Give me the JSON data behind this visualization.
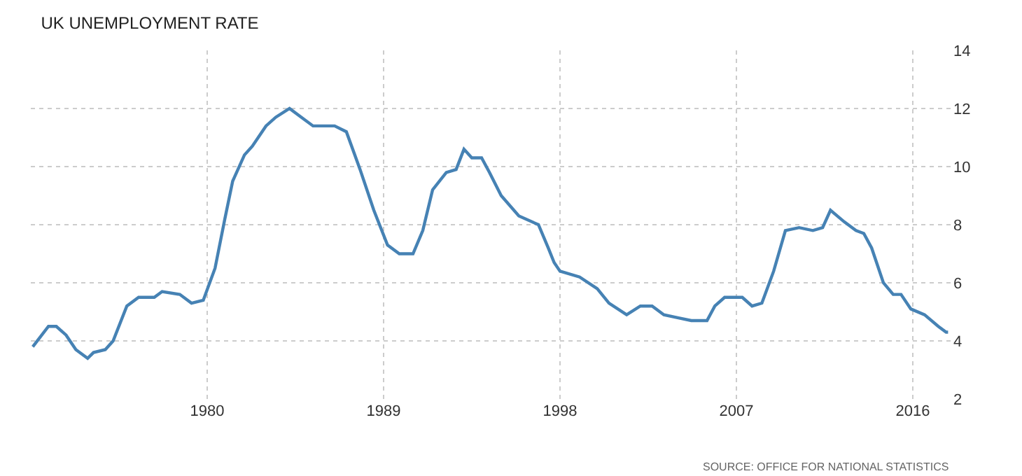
{
  "chart_data": {
    "type": "line",
    "title": "UK UNEMPLOYMENT RATE",
    "annotations": [
      "SOURCE: OFFICE FOR NATIONAL STATISTICS"
    ],
    "x": [
      1971.1,
      1971.9,
      1972.3,
      1972.8,
      1973.3,
      1973.9,
      1974.2,
      1974.8,
      1975.2,
      1975.9,
      1976.5,
      1977.3,
      1977.7,
      1978.6,
      1979.2,
      1979.8,
      1980.4,
      1980.9,
      1981.3,
      1981.9,
      1982.3,
      1983.0,
      1983.5,
      1984.2,
      1984.8,
      1985.4,
      1986.5,
      1987.1,
      1987.8,
      1988.5,
      1989.2,
      1989.8,
      1990.5,
      1991.0,
      1991.5,
      1992.2,
      1992.7,
      1993.1,
      1993.5,
      1994.0,
      1994.4,
      1995.0,
      1995.9,
      1996.9,
      1997.4,
      1997.7,
      1998.0,
      1999.0,
      1999.9,
      2000.5,
      2001.4,
      2002.1,
      2002.7,
      2003.3,
      2004.0,
      2004.7,
      2005.5,
      2005.9,
      2006.4,
      2007.3,
      2007.8,
      2008.3,
      2008.9,
      2009.5,
      2010.2,
      2010.9,
      2011.4,
      2011.8,
      2012.5,
      2013.1,
      2013.5,
      2013.9,
      2014.5,
      2015.0,
      2015.4,
      2015.9,
      2016.6,
      2017.3,
      2017.7,
      2017.8
    ],
    "series": [
      {
        "color": "#4682b4",
        "values": [
          3.8,
          4.5,
          4.5,
          4.2,
          3.7,
          3.4,
          3.6,
          3.7,
          4.0,
          5.2,
          5.5,
          5.5,
          5.7,
          5.6,
          5.3,
          5.4,
          6.5,
          8.2,
          9.5,
          10.4,
          10.7,
          11.4,
          11.7,
          12.0,
          11.7,
          11.4,
          11.4,
          11.2,
          9.9,
          8.5,
          7.3,
          7.0,
          7.0,
          7.8,
          9.2,
          9.8,
          9.9,
          10.6,
          10.3,
          10.3,
          9.8,
          9.0,
          8.3,
          8.0,
          7.2,
          6.7,
          6.4,
          6.2,
          5.8,
          5.3,
          4.9,
          5.2,
          5.2,
          4.9,
          4.8,
          4.7,
          4.7,
          5.2,
          5.5,
          5.5,
          5.2,
          5.3,
          6.4,
          7.8,
          7.9,
          7.8,
          7.9,
          8.5,
          8.1,
          7.8,
          7.7,
          7.2,
          6.0,
          5.6,
          5.6,
          5.1,
          4.9,
          4.5,
          4.3,
          4.3
        ]
      }
    ],
    "xlim": [
      1971,
      2018
    ],
    "xticks": [
      1980,
      1989,
      1998,
      2007,
      2016
    ],
    "ylim": [
      2,
      14
    ],
    "yticks": [
      2,
      4,
      6,
      8,
      10,
      12,
      14
    ],
    "grid": true,
    "marker": "none",
    "line_style": "solid"
  }
}
